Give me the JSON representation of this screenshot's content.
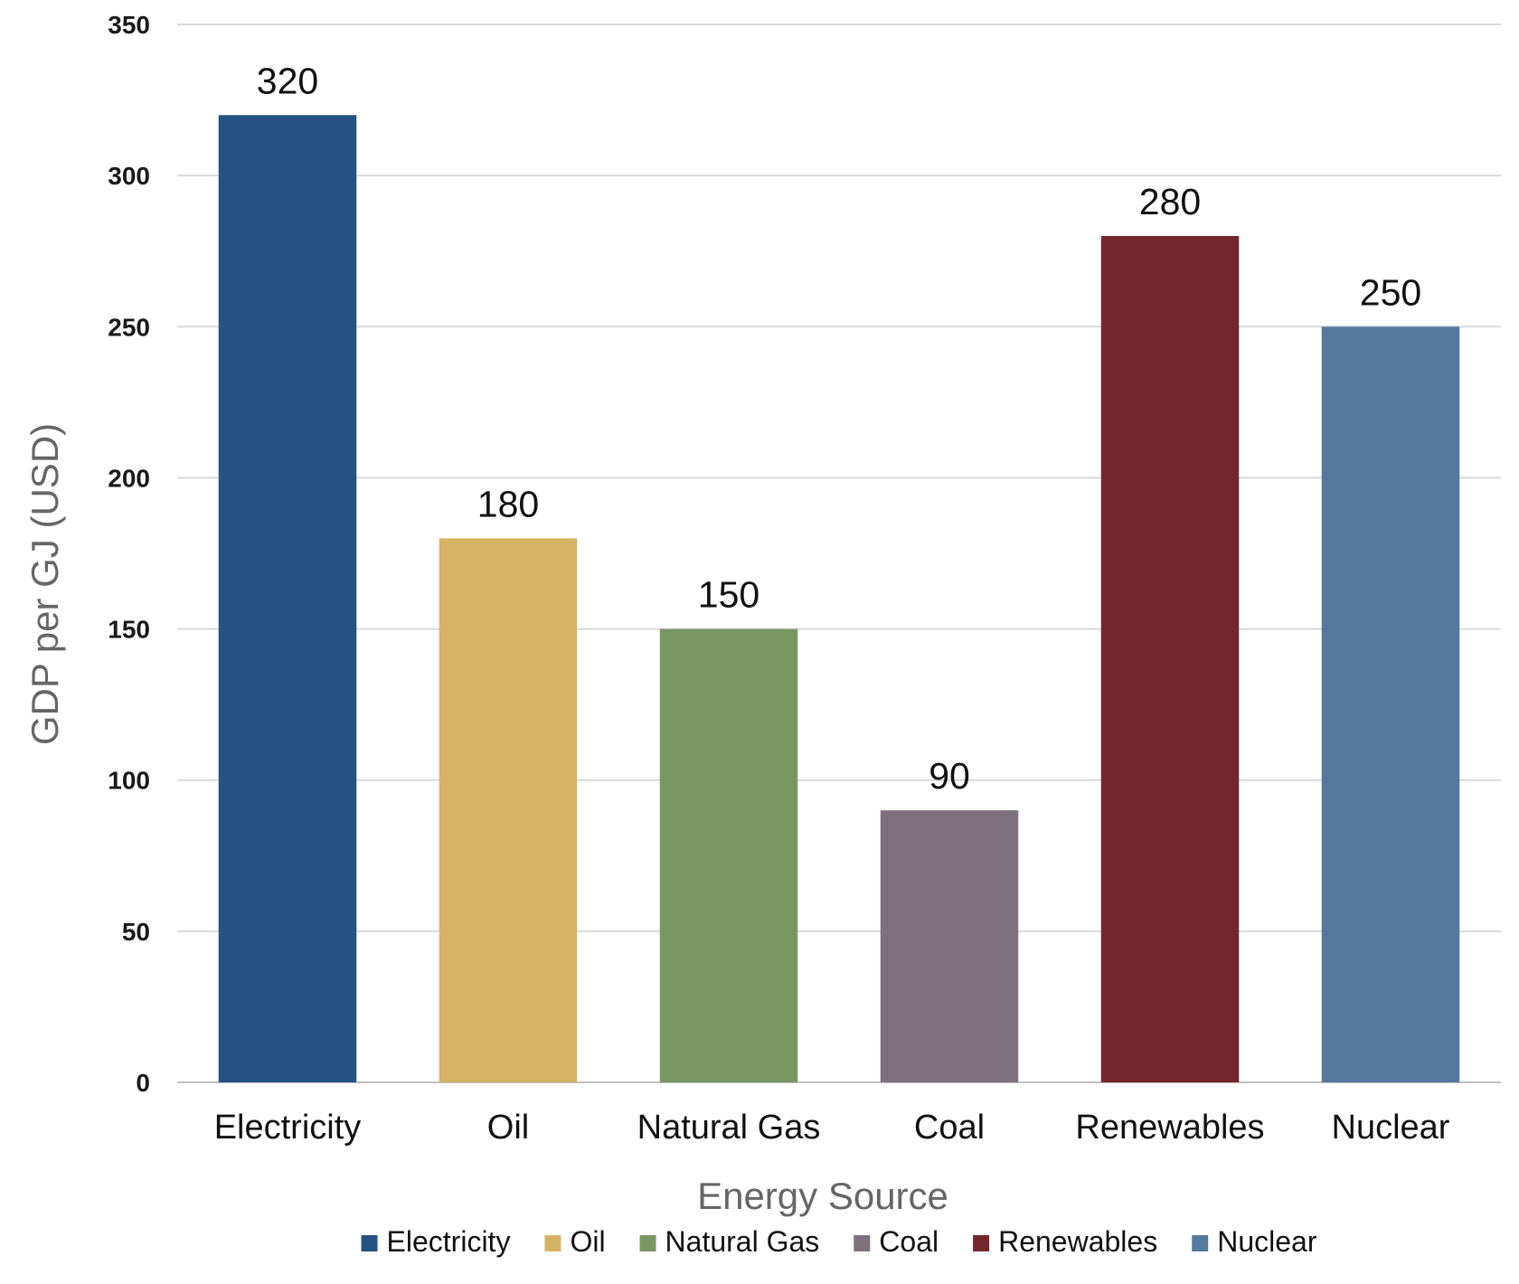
{
  "chart_data": {
    "type": "bar",
    "title": "",
    "xlabel": "Energy Source",
    "ylabel": "GDP per GJ (USD)",
    "ylim": [
      0,
      350
    ],
    "yticks": [
      0,
      50,
      100,
      150,
      200,
      250,
      300,
      350
    ],
    "grid": true,
    "legend_position": "bottom",
    "categories": [
      "Electricity",
      "Oil",
      "Natural Gas",
      "Coal",
      "Renewables",
      "Nuclear"
    ],
    "values": [
      320,
      180,
      150,
      90,
      280,
      250
    ],
    "colors": [
      "#245282",
      "#d6b265",
      "#7a9763",
      "#7e717e",
      "#73272d",
      "#53799c"
    ]
  }
}
